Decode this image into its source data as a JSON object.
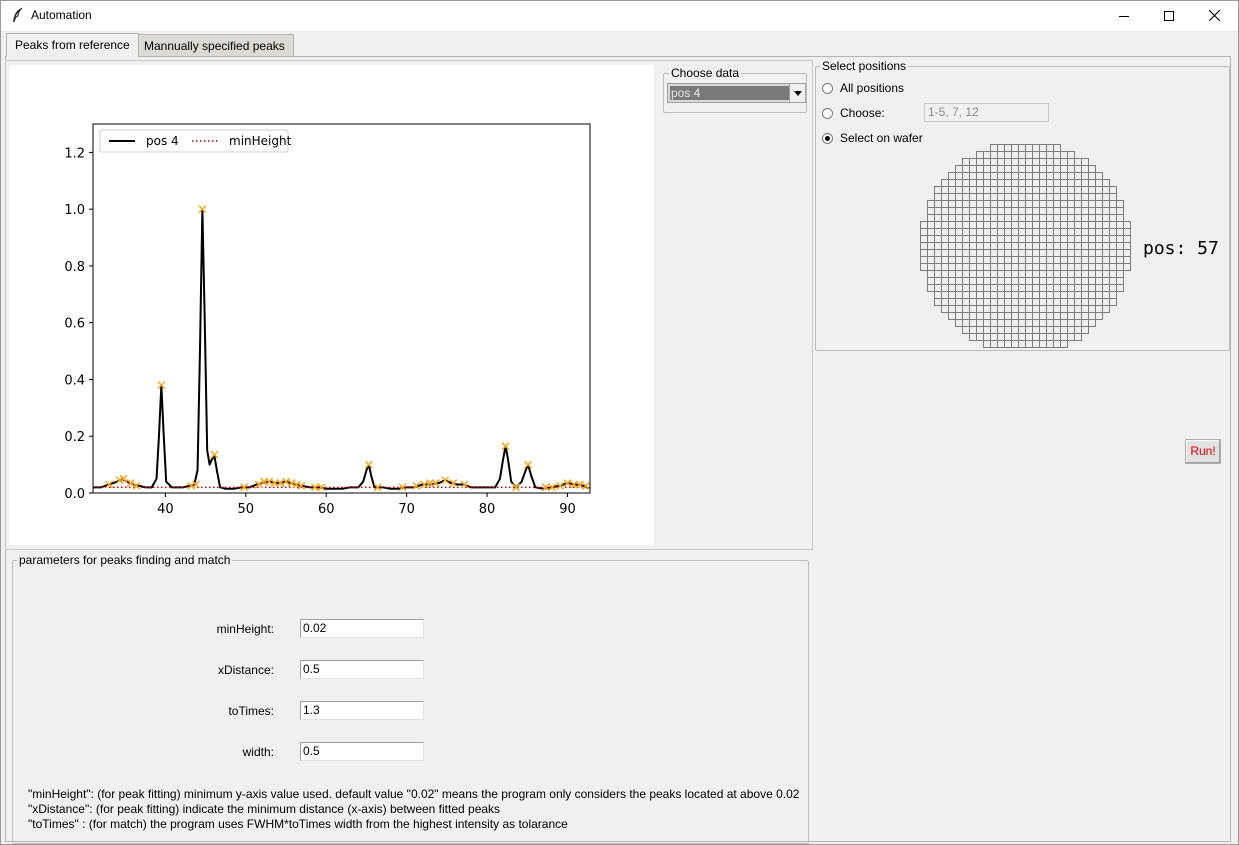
{
  "window": {
    "title": "Automation",
    "min_label": "minimize",
    "max_label": "maximize",
    "close_label": "close"
  },
  "tabs": [
    {
      "label": "Peaks from reference",
      "active": true
    },
    {
      "label": "Mannually specified peaks",
      "active": false
    }
  ],
  "choose_data": {
    "legend": "Choose data",
    "selected": "pos 4"
  },
  "select_positions": {
    "legend": "Select positions",
    "options": [
      {
        "label": "All positions",
        "checked": false
      },
      {
        "label": "Choose:",
        "checked": false
      },
      {
        "label": "Select on wafer",
        "checked": true
      }
    ],
    "choose_value": "1-5, 7, 12",
    "selected_pos_text": "pos: 57"
  },
  "run_button": {
    "label": "Run!",
    "color": "#e00000"
  },
  "parameters": {
    "legend": "parameters for peaks finding and match",
    "fields": [
      {
        "label": "minHeight:",
        "value": "0.02"
      },
      {
        "label": "xDistance:",
        "value": "0.5"
      },
      {
        "label": "toTimes:",
        "value": "1.3"
      },
      {
        "label": "width:",
        "value": "0.5"
      }
    ],
    "notes": [
      "\"minHeight\": (for peak fitting) minimum y-axis value used. default value \"0.02\" means the program only considers the peaks located at above 0.02",
      "\"xDistance\": (for peak fitting) indicate the minimum distance (x-axis) between fitted peaks",
      "\"toTimes\" : (for match) the program uses FWHM*toTimes width from the highest intensity as tolarance"
    ]
  },
  "chart_data": {
    "type": "line",
    "xlim": [
      31,
      92.8
    ],
    "ylim": [
      0,
      1.3
    ],
    "x_ticks": [
      40,
      50,
      60,
      70,
      80,
      90
    ],
    "y_ticks": [
      0.0,
      0.2,
      0.4,
      0.6,
      0.8,
      1.0,
      1.2
    ],
    "legend_position": "upper-left",
    "grid": false,
    "series": [
      {
        "name": "pos 4",
        "color": "#000000",
        "style": "solid",
        "points": [
          [
            31,
            0.02
          ],
          [
            32,
            0.02
          ],
          [
            33,
            0.03
          ],
          [
            34,
            0.04
          ],
          [
            34.6,
            0.05
          ],
          [
            35.2,
            0.04
          ],
          [
            36,
            0.03
          ],
          [
            36.8,
            0.025
          ],
          [
            37.5,
            0.02
          ],
          [
            38.3,
            0.02
          ],
          [
            38.9,
            0.05
          ],
          [
            39.2,
            0.2
          ],
          [
            39.5,
            0.38
          ],
          [
            39.8,
            0.2
          ],
          [
            40.1,
            0.04
          ],
          [
            40.8,
            0.02
          ],
          [
            41.5,
            0.02
          ],
          [
            42.2,
            0.02
          ],
          [
            43,
            0.025
          ],
          [
            43.6,
            0.03
          ],
          [
            44,
            0.08
          ],
          [
            44.3,
            0.5
          ],
          [
            44.6,
            1.0
          ],
          [
            44.9,
            0.6
          ],
          [
            45.2,
            0.15
          ],
          [
            45.5,
            0.1
          ],
          [
            45.8,
            0.12
          ],
          [
            46.1,
            0.13
          ],
          [
            46.4,
            0.08
          ],
          [
            46.8,
            0.02
          ],
          [
            47.5,
            0.015
          ],
          [
            48.5,
            0.015
          ],
          [
            49.5,
            0.02
          ],
          [
            50.5,
            0.02
          ],
          [
            51.3,
            0.03
          ],
          [
            52,
            0.035
          ],
          [
            53,
            0.04
          ],
          [
            54,
            0.035
          ],
          [
            55,
            0.04
          ],
          [
            56,
            0.03
          ],
          [
            57,
            0.025
          ],
          [
            58,
            0.02
          ],
          [
            59,
            0.02
          ],
          [
            60,
            0.015
          ],
          [
            61,
            0.015
          ],
          [
            62,
            0.015
          ],
          [
            63,
            0.02
          ],
          [
            64,
            0.02
          ],
          [
            64.6,
            0.04
          ],
          [
            65,
            0.08
          ],
          [
            65.3,
            0.1
          ],
          [
            65.6,
            0.06
          ],
          [
            66,
            0.02
          ],
          [
            67,
            0.02
          ],
          [
            68,
            0.015
          ],
          [
            69,
            0.015
          ],
          [
            70,
            0.02
          ],
          [
            71,
            0.02
          ],
          [
            72,
            0.03
          ],
          [
            73,
            0.03
          ],
          [
            74,
            0.035
          ],
          [
            74.8,
            0.045
          ],
          [
            75.5,
            0.035
          ],
          [
            76.3,
            0.03
          ],
          [
            77,
            0.03
          ],
          [
            78,
            0.02
          ],
          [
            79,
            0.02
          ],
          [
            80,
            0.02
          ],
          [
            81,
            0.02
          ],
          [
            81.6,
            0.05
          ],
          [
            82,
            0.12
          ],
          [
            82.3,
            0.165
          ],
          [
            82.6,
            0.12
          ],
          [
            83,
            0.04
          ],
          [
            83.6,
            0.02
          ],
          [
            84.3,
            0.04
          ],
          [
            84.8,
            0.08
          ],
          [
            85.1,
            0.1
          ],
          [
            85.5,
            0.06
          ],
          [
            86,
            0.02
          ],
          [
            87,
            0.015
          ],
          [
            88,
            0.02
          ],
          [
            89,
            0.025
          ],
          [
            90,
            0.035
          ],
          [
            91,
            0.03
          ],
          [
            92,
            0.025
          ],
          [
            92.8,
            0.015
          ]
        ]
      },
      {
        "name": "minHeight",
        "color": "#c00000",
        "style": "dotted",
        "y": 0.02
      }
    ],
    "peak_markers": {
      "color": "#f5a623",
      "points": [
        [
          33,
          0.03
        ],
        [
          34.3,
          0.045
        ],
        [
          34.8,
          0.05
        ],
        [
          35.7,
          0.035
        ],
        [
          36.4,
          0.025
        ],
        [
          39.5,
          0.38
        ],
        [
          43.2,
          0.025
        ],
        [
          43.8,
          0.03
        ],
        [
          44.6,
          1.0
        ],
        [
          46.1,
          0.135
        ],
        [
          49.8,
          0.02
        ],
        [
          51.6,
          0.03
        ],
        [
          52.3,
          0.04
        ],
        [
          52.9,
          0.04
        ],
        [
          53.6,
          0.035
        ],
        [
          54.3,
          0.035
        ],
        [
          55,
          0.04
        ],
        [
          55.7,
          0.035
        ],
        [
          56.3,
          0.03
        ],
        [
          56.9,
          0.025
        ],
        [
          58.6,
          0.02
        ],
        [
          59.4,
          0.02
        ],
        [
          65.3,
          0.1
        ],
        [
          66.4,
          0.02
        ],
        [
          69.5,
          0.02
        ],
        [
          71.2,
          0.025
        ],
        [
          72.2,
          0.03
        ],
        [
          72.9,
          0.035
        ],
        [
          73.6,
          0.035
        ],
        [
          74.8,
          0.045
        ],
        [
          75.8,
          0.035
        ],
        [
          77.2,
          0.03
        ],
        [
          82.3,
          0.165
        ],
        [
          83.6,
          0.02
        ],
        [
          85.1,
          0.1
        ],
        [
          87.3,
          0.02
        ],
        [
          88.1,
          0.02
        ],
        [
          89.1,
          0.025
        ],
        [
          90,
          0.035
        ],
        [
          90.8,
          0.03
        ],
        [
          91.5,
          0.03
        ],
        [
          92.3,
          0.025
        ]
      ]
    }
  }
}
